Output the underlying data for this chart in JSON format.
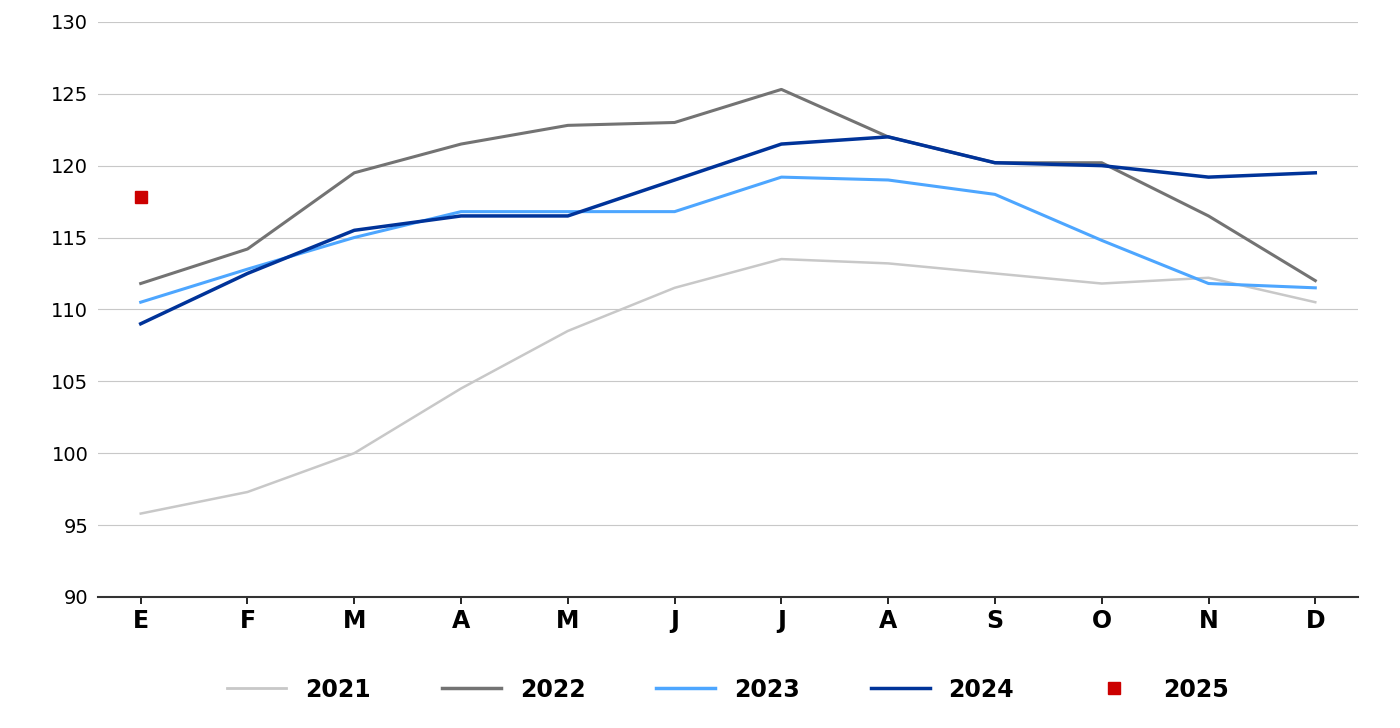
{
  "months": [
    "E",
    "F",
    "M",
    "A",
    "M",
    "J",
    "J",
    "A",
    "S",
    "O",
    "N",
    "D"
  ],
  "series": {
    "2021": [
      95.8,
      97.3,
      100.0,
      104.5,
      108.5,
      111.5,
      113.5,
      113.2,
      112.5,
      111.8,
      112.2,
      110.5
    ],
    "2022": [
      111.8,
      114.2,
      119.5,
      121.5,
      122.8,
      123.0,
      125.3,
      122.0,
      120.2,
      120.2,
      116.5,
      112.0
    ],
    "2023": [
      110.5,
      112.8,
      115.0,
      116.8,
      116.8,
      116.8,
      119.2,
      119.0,
      118.0,
      114.8,
      111.8,
      111.5
    ],
    "2024": [
      109.0,
      112.5,
      115.5,
      116.5,
      116.5,
      119.0,
      121.5,
      122.0,
      120.2,
      120.0,
      119.2,
      119.5
    ],
    "2025": [
      117.8
    ]
  },
  "colors": {
    "2021": "#c8c8c8",
    "2022": "#737373",
    "2023": "#4da6ff",
    "2024": "#003399",
    "2025": "#cc0000"
  },
  "linewidths": {
    "2021": 1.8,
    "2022": 2.2,
    "2023": 2.2,
    "2024": 2.5
  },
  "ylim": [
    90,
    130
  ],
  "yticks": [
    90,
    95,
    100,
    105,
    110,
    115,
    120,
    125,
    130
  ],
  "background_color": "#ffffff",
  "grid_color": "#c8c8c8"
}
